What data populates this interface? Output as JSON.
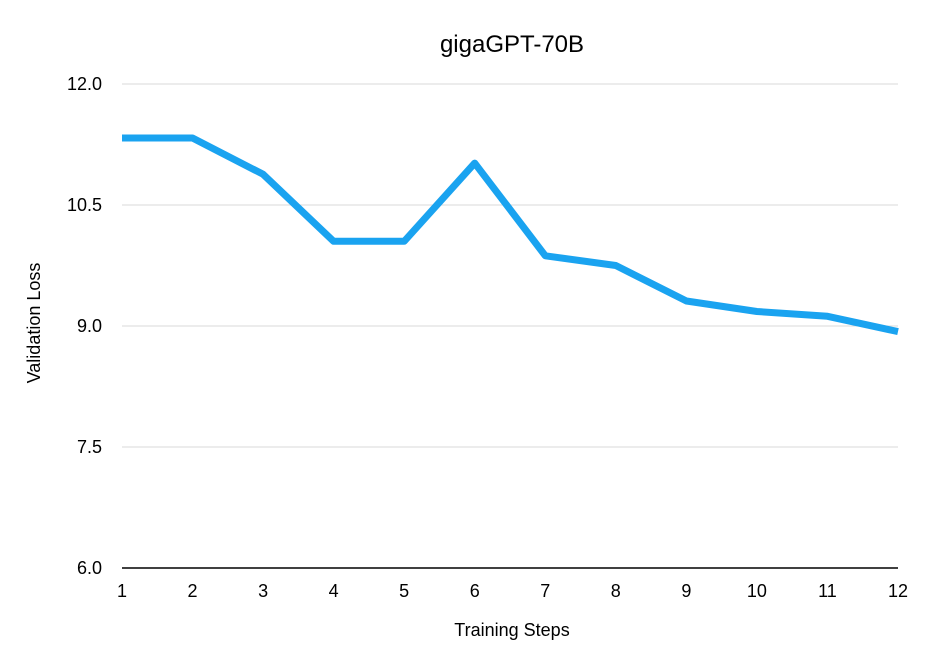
{
  "chart_data": {
    "type": "line",
    "title": "gigaGPT-70B",
    "xlabel": "Training Steps",
    "ylabel": "Validation Loss",
    "x": [
      1,
      2,
      3,
      4,
      5,
      6,
      7,
      8,
      9,
      10,
      11,
      12
    ],
    "series": [
      {
        "values": [
          11.33,
          11.33,
          10.88,
          10.05,
          10.05,
          11.02,
          9.87,
          9.75,
          9.31,
          9.18,
          9.12,
          8.93
        ],
        "color": "#1aa3f0"
      }
    ],
    "ylim": [
      6.0,
      12.0
    ],
    "xlim": [
      1,
      12
    ],
    "y_ticks": [
      "6.0",
      "7.5",
      "9.0",
      "10.5",
      "12.0"
    ],
    "x_ticks": [
      "1",
      "2",
      "3",
      "4",
      "5",
      "6",
      "7",
      "8",
      "9",
      "10",
      "11",
      "12"
    ],
    "grid": "horizontal",
    "legend": "none"
  }
}
